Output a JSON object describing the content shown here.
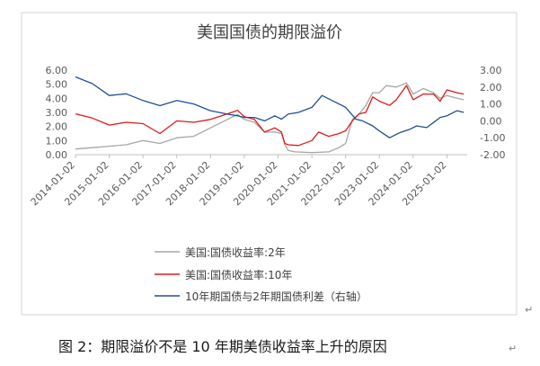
{
  "chart_data": {
    "type": "line",
    "title": "美国国债的期限溢价",
    "caption": "图 2：期限溢价不是 10 年期美债收益率上升的原因",
    "x_tick_labels": [
      "2014-01-02",
      "2015-01-02",
      "2016-01-02",
      "2017-01-02",
      "2018-01-02",
      "2019-01-02",
      "2020-01-02",
      "2021-01-02",
      "2022-01-02",
      "2023-01-02",
      "2024-01-02",
      "2025-01-02"
    ],
    "left_axis": {
      "ylim": [
        0,
        6
      ],
      "tick_labels": [
        "0.00",
        "1.00",
        "2.00",
        "3.00",
        "4.00",
        "5.00",
        "6.00"
      ]
    },
    "right_axis": {
      "ylim": [
        -2,
        3
      ],
      "tick_labels": [
        "-2.00",
        "-1.00",
        "0.00",
        "1.00",
        "2.00",
        "3.00"
      ]
    },
    "x_range": [
      2014.0,
      2025.6
    ],
    "grid": false,
    "legend_position": "bottom",
    "series": [
      {
        "name": "美国:国债收益率:2年",
        "axis": "left",
        "color": "#a6a6a6",
        "x": [
          2014.0,
          2014.5,
          2015.0,
          2015.5,
          2016.0,
          2016.5,
          2017.0,
          2017.5,
          2018.0,
          2018.5,
          2018.8,
          2019.0,
          2019.3,
          2019.6,
          2019.9,
          2020.1,
          2020.2,
          2020.3,
          2020.5,
          2021.0,
          2021.5,
          2021.8,
          2022.0,
          2022.2,
          2022.4,
          2022.6,
          2022.8,
          2023.0,
          2023.2,
          2023.5,
          2023.8,
          2024.0,
          2024.3,
          2024.6,
          2024.8,
          2025.0,
          2025.3,
          2025.5
        ],
        "y": [
          0.4,
          0.5,
          0.6,
          0.7,
          1.0,
          0.8,
          1.2,
          1.3,
          1.9,
          2.5,
          2.85,
          2.5,
          2.3,
          1.6,
          1.6,
          1.5,
          0.7,
          0.3,
          0.2,
          0.15,
          0.2,
          0.5,
          0.8,
          2.5,
          2.9,
          3.5,
          4.4,
          4.4,
          4.9,
          4.8,
          5.1,
          4.3,
          4.7,
          4.4,
          4.0,
          4.2,
          4.0,
          3.9
        ]
      },
      {
        "name": "美国:国债收益率:10年",
        "axis": "left",
        "color": "#e01a1a",
        "x": [
          2014.0,
          2014.5,
          2015.0,
          2015.5,
          2016.0,
          2016.5,
          2017.0,
          2017.5,
          2018.0,
          2018.5,
          2018.8,
          2019.0,
          2019.3,
          2019.6,
          2019.9,
          2020.1,
          2020.2,
          2020.3,
          2020.6,
          2021.0,
          2021.2,
          2021.5,
          2021.8,
          2022.0,
          2022.2,
          2022.4,
          2022.6,
          2022.8,
          2023.0,
          2023.3,
          2023.5,
          2023.8,
          2024.0,
          2024.3,
          2024.6,
          2024.8,
          2025.0,
          2025.3,
          2025.5
        ],
        "y": [
          2.9,
          2.6,
          2.1,
          2.3,
          2.2,
          1.5,
          2.4,
          2.3,
          2.5,
          2.9,
          3.15,
          2.7,
          2.5,
          1.6,
          1.9,
          1.6,
          0.8,
          0.7,
          0.65,
          1.0,
          1.6,
          1.3,
          1.5,
          1.7,
          2.4,
          2.9,
          3.0,
          4.1,
          3.8,
          3.5,
          3.9,
          4.9,
          3.9,
          4.3,
          4.3,
          3.8,
          4.6,
          4.4,
          4.3
        ]
      },
      {
        "name": "10年期国债与2年期国债利差（右轴）",
        "axis": "right",
        "color": "#1f4e96",
        "x": [
          2014.0,
          2014.5,
          2015.0,
          2015.5,
          2016.0,
          2016.5,
          2017.0,
          2017.5,
          2018.0,
          2018.5,
          2018.8,
          2019.0,
          2019.3,
          2019.6,
          2019.9,
          2020.1,
          2020.3,
          2020.6,
          2021.0,
          2021.3,
          2021.6,
          2022.0,
          2022.3,
          2022.5,
          2022.8,
          2023.0,
          2023.3,
          2023.6,
          2023.9,
          2024.1,
          2024.4,
          2024.6,
          2024.8,
          2025.0,
          2025.3,
          2025.5
        ],
        "y": [
          2.6,
          2.2,
          1.5,
          1.6,
          1.2,
          0.9,
          1.2,
          1.0,
          0.6,
          0.4,
          0.3,
          0.2,
          0.2,
          0.0,
          0.3,
          0.1,
          0.4,
          0.5,
          0.8,
          1.5,
          1.2,
          0.8,
          0.1,
          0.0,
          -0.3,
          -0.6,
          -1.0,
          -0.7,
          -0.5,
          -0.3,
          -0.4,
          -0.1,
          0.2,
          0.3,
          0.6,
          0.5
        ]
      }
    ]
  }
}
